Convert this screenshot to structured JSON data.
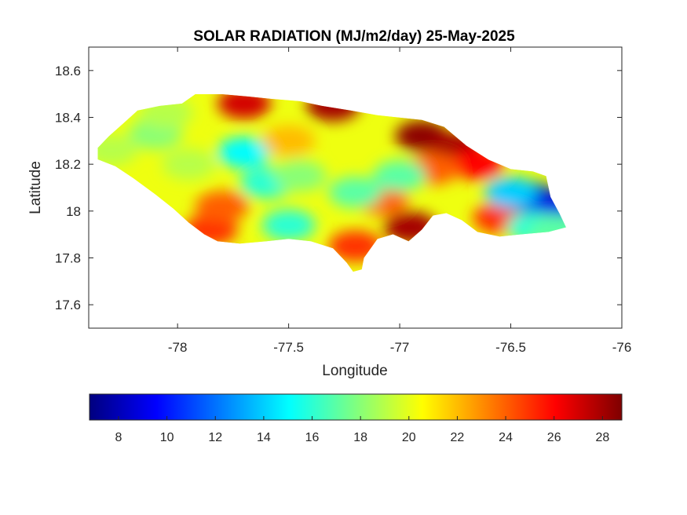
{
  "title": "SOLAR RADIATION (MJ/m2/day) 25-May-2025",
  "xlabel": "Longitude",
  "ylabel": "Latitude",
  "x_ticks": [
    "-78",
    "-77.5",
    "-77",
    "-76.5",
    "-76"
  ],
  "y_ticks": [
    "18.6",
    "18.4",
    "18.2",
    "18",
    "17.8",
    "17.6"
  ],
  "colorbar": {
    "colormap": "jet",
    "range": [
      6.8,
      28.8
    ],
    "ticks": [
      "8",
      "10",
      "12",
      "14",
      "16",
      "18",
      "20",
      "22",
      "24",
      "26",
      "28"
    ]
  },
  "map_data": {
    "type": "filled-contour",
    "region": "Jamaica",
    "x_range": [
      -78.4,
      -76
    ],
    "y_range": [
      17.5,
      18.7
    ],
    "outline_lonlat": [
      [
        -78.36,
        18.27
      ],
      [
        -78.31,
        18.32
      ],
      [
        -78.25,
        18.37
      ],
      [
        -78.18,
        18.43
      ],
      [
        -78.08,
        18.45
      ],
      [
        -77.98,
        18.46
      ],
      [
        -77.92,
        18.5
      ],
      [
        -77.8,
        18.5
      ],
      [
        -77.68,
        18.49
      ],
      [
        -77.58,
        18.48
      ],
      [
        -77.45,
        18.47
      ],
      [
        -77.35,
        18.45
      ],
      [
        -77.22,
        18.43
      ],
      [
        -77.1,
        18.41
      ],
      [
        -77.0,
        18.4
      ],
      [
        -76.9,
        18.39
      ],
      [
        -76.8,
        18.36
      ],
      [
        -76.7,
        18.28
      ],
      [
        -76.6,
        18.22
      ],
      [
        -76.5,
        18.18
      ],
      [
        -76.4,
        18.17
      ],
      [
        -76.34,
        18.15
      ],
      [
        -76.32,
        18.06
      ],
      [
        -76.28,
        17.99
      ],
      [
        -76.25,
        17.93
      ],
      [
        -76.33,
        17.91
      ],
      [
        -76.45,
        17.9
      ],
      [
        -76.55,
        17.89
      ],
      [
        -76.65,
        17.91
      ],
      [
        -76.72,
        17.96
      ],
      [
        -76.79,
        17.99
      ],
      [
        -76.85,
        17.98
      ],
      [
        -76.9,
        17.92
      ],
      [
        -76.96,
        17.87
      ],
      [
        -77.03,
        17.9
      ],
      [
        -77.1,
        17.88
      ],
      [
        -77.16,
        17.8
      ],
      [
        -77.17,
        17.75
      ],
      [
        -77.21,
        17.74
      ],
      [
        -77.24,
        17.78
      ],
      [
        -77.3,
        17.84
      ],
      [
        -77.4,
        17.87
      ],
      [
        -77.5,
        17.88
      ],
      [
        -77.6,
        17.87
      ],
      [
        -77.72,
        17.86
      ],
      [
        -77.82,
        17.87
      ],
      [
        -77.88,
        17.9
      ],
      [
        -77.95,
        17.95
      ],
      [
        -78.02,
        18.01
      ],
      [
        -78.1,
        18.07
      ],
      [
        -78.2,
        18.14
      ],
      [
        -78.28,
        18.19
      ],
      [
        -78.36,
        18.22
      ]
    ],
    "hotspots_lon_lat_value": [
      [
        -77.3,
        18.45,
        28
      ],
      [
        -77.7,
        18.46,
        27
      ],
      [
        -76.9,
        18.32,
        28.5
      ],
      [
        -76.75,
        18.27,
        28
      ],
      [
        -76.65,
        18.2,
        26
      ],
      [
        -76.95,
        17.93,
        28
      ],
      [
        -77.2,
        17.85,
        25
      ],
      [
        -77.85,
        17.92,
        25
      ],
      [
        -77.8,
        18.02,
        24
      ],
      [
        -77.08,
        18.05,
        24
      ],
      [
        -76.55,
        17.97,
        25
      ],
      [
        -76.85,
        18.18,
        24
      ],
      [
        -76.42,
        18.06,
        8
      ],
      [
        -76.32,
        18.02,
        9
      ],
      [
        -76.5,
        18.08,
        14
      ],
      [
        -77.7,
        18.25,
        15
      ],
      [
        -77.6,
        18.12,
        16
      ],
      [
        -77.5,
        17.94,
        16
      ],
      [
        -77.45,
        18.15,
        18
      ],
      [
        -77.2,
        18.08,
        17
      ],
      [
        -78.1,
        18.33,
        18
      ],
      [
        -78.3,
        18.26,
        19
      ],
      [
        -77.95,
        18.2,
        19
      ],
      [
        -76.4,
        17.93,
        16
      ],
      [
        -76.3,
        17.92,
        17
      ],
      [
        -77.0,
        18.15,
        17
      ],
      [
        -77.5,
        18.3,
        22
      ],
      [
        -78.05,
        18.42,
        19
      ]
    ]
  }
}
